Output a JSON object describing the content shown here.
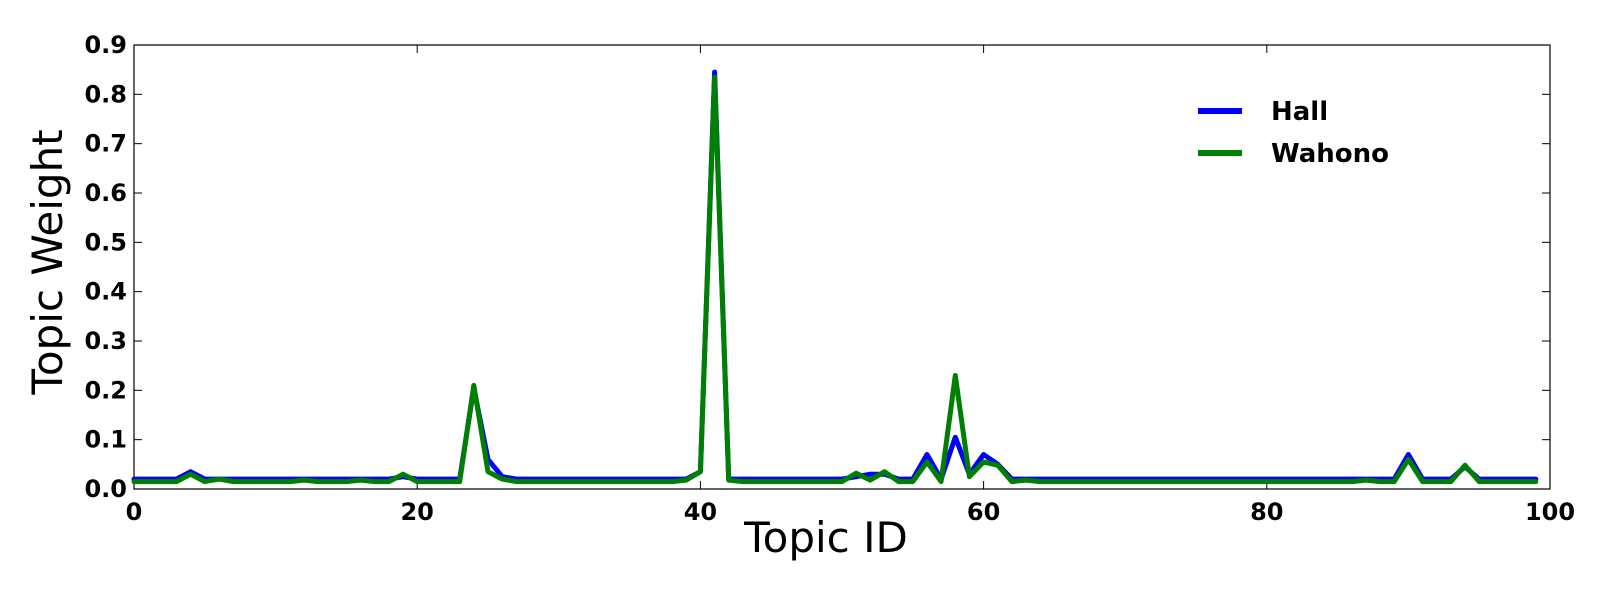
{
  "chart_data": {
    "type": "line",
    "title": "",
    "xlabel": "Topic ID",
    "ylabel": "Topic Weight",
    "xlim": [
      0,
      100
    ],
    "ylim": [
      0,
      0.9
    ],
    "xticks": [
      "0",
      "20",
      "40",
      "60",
      "80",
      "100"
    ],
    "yticks": [
      "0.0",
      "0.1",
      "0.2",
      "0.3",
      "0.4",
      "0.5",
      "0.6",
      "0.7",
      "0.8",
      "0.9"
    ],
    "xtick_values": [
      0,
      20,
      40,
      60,
      80,
      100
    ],
    "ytick_values": [
      0,
      0.1,
      0.2,
      0.3,
      0.4,
      0.5,
      0.6,
      0.7,
      0.8,
      0.9
    ],
    "grid": false,
    "legend_position": "top-right",
    "x": [
      0,
      1,
      2,
      3,
      4,
      5,
      6,
      7,
      8,
      9,
      10,
      11,
      12,
      13,
      14,
      15,
      16,
      17,
      18,
      19,
      20,
      21,
      22,
      23,
      24,
      25,
      26,
      27,
      28,
      29,
      30,
      31,
      32,
      33,
      34,
      35,
      36,
      37,
      38,
      39,
      40,
      41,
      42,
      43,
      44,
      45,
      46,
      47,
      48,
      49,
      50,
      51,
      52,
      53,
      54,
      55,
      56,
      57,
      58,
      59,
      60,
      61,
      62,
      63,
      64,
      65,
      66,
      67,
      68,
      69,
      70,
      71,
      72,
      73,
      74,
      75,
      76,
      77,
      78,
      79,
      80,
      81,
      82,
      83,
      84,
      85,
      86,
      87,
      88,
      89,
      90,
      91,
      92,
      93,
      94,
      95,
      96,
      97,
      98,
      99
    ],
    "series": [
      {
        "name": "Hall",
        "color": "#0000ff",
        "values": [
          0.02,
          0.02,
          0.02,
          0.02,
          0.035,
          0.02,
          0.02,
          0.02,
          0.02,
          0.02,
          0.02,
          0.02,
          0.02,
          0.02,
          0.02,
          0.02,
          0.02,
          0.02,
          0.02,
          0.025,
          0.02,
          0.02,
          0.02,
          0.02,
          0.205,
          0.06,
          0.025,
          0.02,
          0.02,
          0.02,
          0.02,
          0.02,
          0.02,
          0.02,
          0.02,
          0.02,
          0.02,
          0.02,
          0.02,
          0.02,
          0.035,
          0.845,
          0.02,
          0.02,
          0.02,
          0.02,
          0.02,
          0.02,
          0.02,
          0.02,
          0.02,
          0.025,
          0.03,
          0.03,
          0.02,
          0.02,
          0.07,
          0.02,
          0.105,
          0.03,
          0.07,
          0.05,
          0.02,
          0.02,
          0.02,
          0.02,
          0.02,
          0.02,
          0.02,
          0.02,
          0.02,
          0.02,
          0.02,
          0.02,
          0.02,
          0.02,
          0.02,
          0.02,
          0.02,
          0.02,
          0.02,
          0.02,
          0.02,
          0.02,
          0.02,
          0.02,
          0.02,
          0.02,
          0.02,
          0.02,
          0.07,
          0.02,
          0.02,
          0.02,
          0.045,
          0.02,
          0.02,
          0.02,
          0.02,
          0.02
        ]
      },
      {
        "name": "Wahono",
        "color": "#008000",
        "values": [
          0.015,
          0.015,
          0.015,
          0.015,
          0.03,
          0.015,
          0.02,
          0.015,
          0.015,
          0.015,
          0.015,
          0.015,
          0.018,
          0.015,
          0.015,
          0.015,
          0.018,
          0.015,
          0.015,
          0.03,
          0.015,
          0.015,
          0.015,
          0.015,
          0.21,
          0.035,
          0.02,
          0.015,
          0.015,
          0.015,
          0.015,
          0.015,
          0.015,
          0.015,
          0.015,
          0.015,
          0.015,
          0.015,
          0.015,
          0.018,
          0.035,
          0.835,
          0.018,
          0.015,
          0.015,
          0.015,
          0.015,
          0.015,
          0.015,
          0.015,
          0.015,
          0.032,
          0.018,
          0.035,
          0.015,
          0.015,
          0.055,
          0.015,
          0.23,
          0.025,
          0.055,
          0.048,
          0.015,
          0.018,
          0.015,
          0.015,
          0.015,
          0.015,
          0.015,
          0.015,
          0.015,
          0.015,
          0.015,
          0.015,
          0.015,
          0.015,
          0.015,
          0.015,
          0.015,
          0.015,
          0.015,
          0.015,
          0.015,
          0.015,
          0.015,
          0.015,
          0.015,
          0.018,
          0.015,
          0.015,
          0.06,
          0.015,
          0.015,
          0.015,
          0.048,
          0.015,
          0.015,
          0.015,
          0.015,
          0.015
        ]
      }
    ]
  }
}
